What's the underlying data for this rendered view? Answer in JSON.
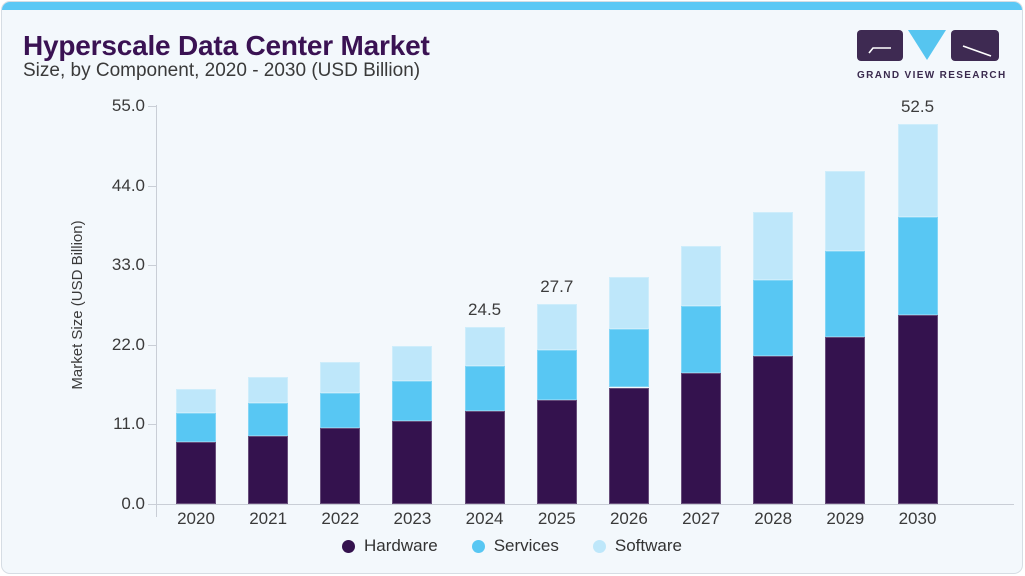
{
  "header": {
    "title": "Hyperscale Data Center Market",
    "subtitle": "Size, by Component, 2020 - 2030 (USD Billion)",
    "logo_text": "GRAND VIEW RESEARCH"
  },
  "colors": {
    "accent_blue": "#5BC8F5",
    "card_bg": "#F3F8FC",
    "title_purple": "#3A1253",
    "text_dark": "#3A3A3A",
    "axis_gray": "#C9CED6",
    "logo_purple": "#3E2A52",
    "logo_triangle_blue": "#56C5F0"
  },
  "chart_data": {
    "type": "bar",
    "stacked": true,
    "title": "Hyperscale Data Center Market Size, by Component, 2020 - 2030 (USD Billion)",
    "ylabel": "Market Size (USD Billion)",
    "xlabel": "",
    "categories": [
      "2020",
      "2021",
      "2022",
      "2023",
      "2024",
      "2025",
      "2026",
      "2027",
      "2028",
      "2029",
      "2030"
    ],
    "series": [
      {
        "name": "Hardware",
        "color": "#34124E",
        "values": [
          8.5,
          9.4,
          10.5,
          11.5,
          12.9,
          14.4,
          16.1,
          18.1,
          20.5,
          23.1,
          26.1
        ]
      },
      {
        "name": "Services",
        "color": "#58C7F3",
        "values": [
          4.1,
          4.5,
          4.9,
          5.5,
          6.2,
          6.9,
          8.1,
          9.2,
          10.4,
          11.8,
          13.5
        ]
      },
      {
        "name": "Software",
        "color": "#BEE7FA",
        "values": [
          3.3,
          3.7,
          4.2,
          4.9,
          5.4,
          6.4,
          7.2,
          8.3,
          9.5,
          11.1,
          12.9
        ]
      }
    ],
    "totals": [
      15.9,
      17.6,
      19.6,
      21.9,
      24.5,
      27.7,
      31.4,
      35.6,
      40.4,
      46.0,
      52.5
    ],
    "value_labels": {
      "2024": "24.5",
      "2025": "27.7",
      "2030": "52.5"
    },
    "yticks": [
      "0.0",
      "11.0",
      "22.0",
      "33.0",
      "44.0",
      "55.0"
    ],
    "ytick_values": [
      0,
      11,
      22,
      33,
      44,
      55
    ],
    "ylim": [
      0,
      55
    ],
    "grid": false,
    "legend_position": "bottom"
  }
}
